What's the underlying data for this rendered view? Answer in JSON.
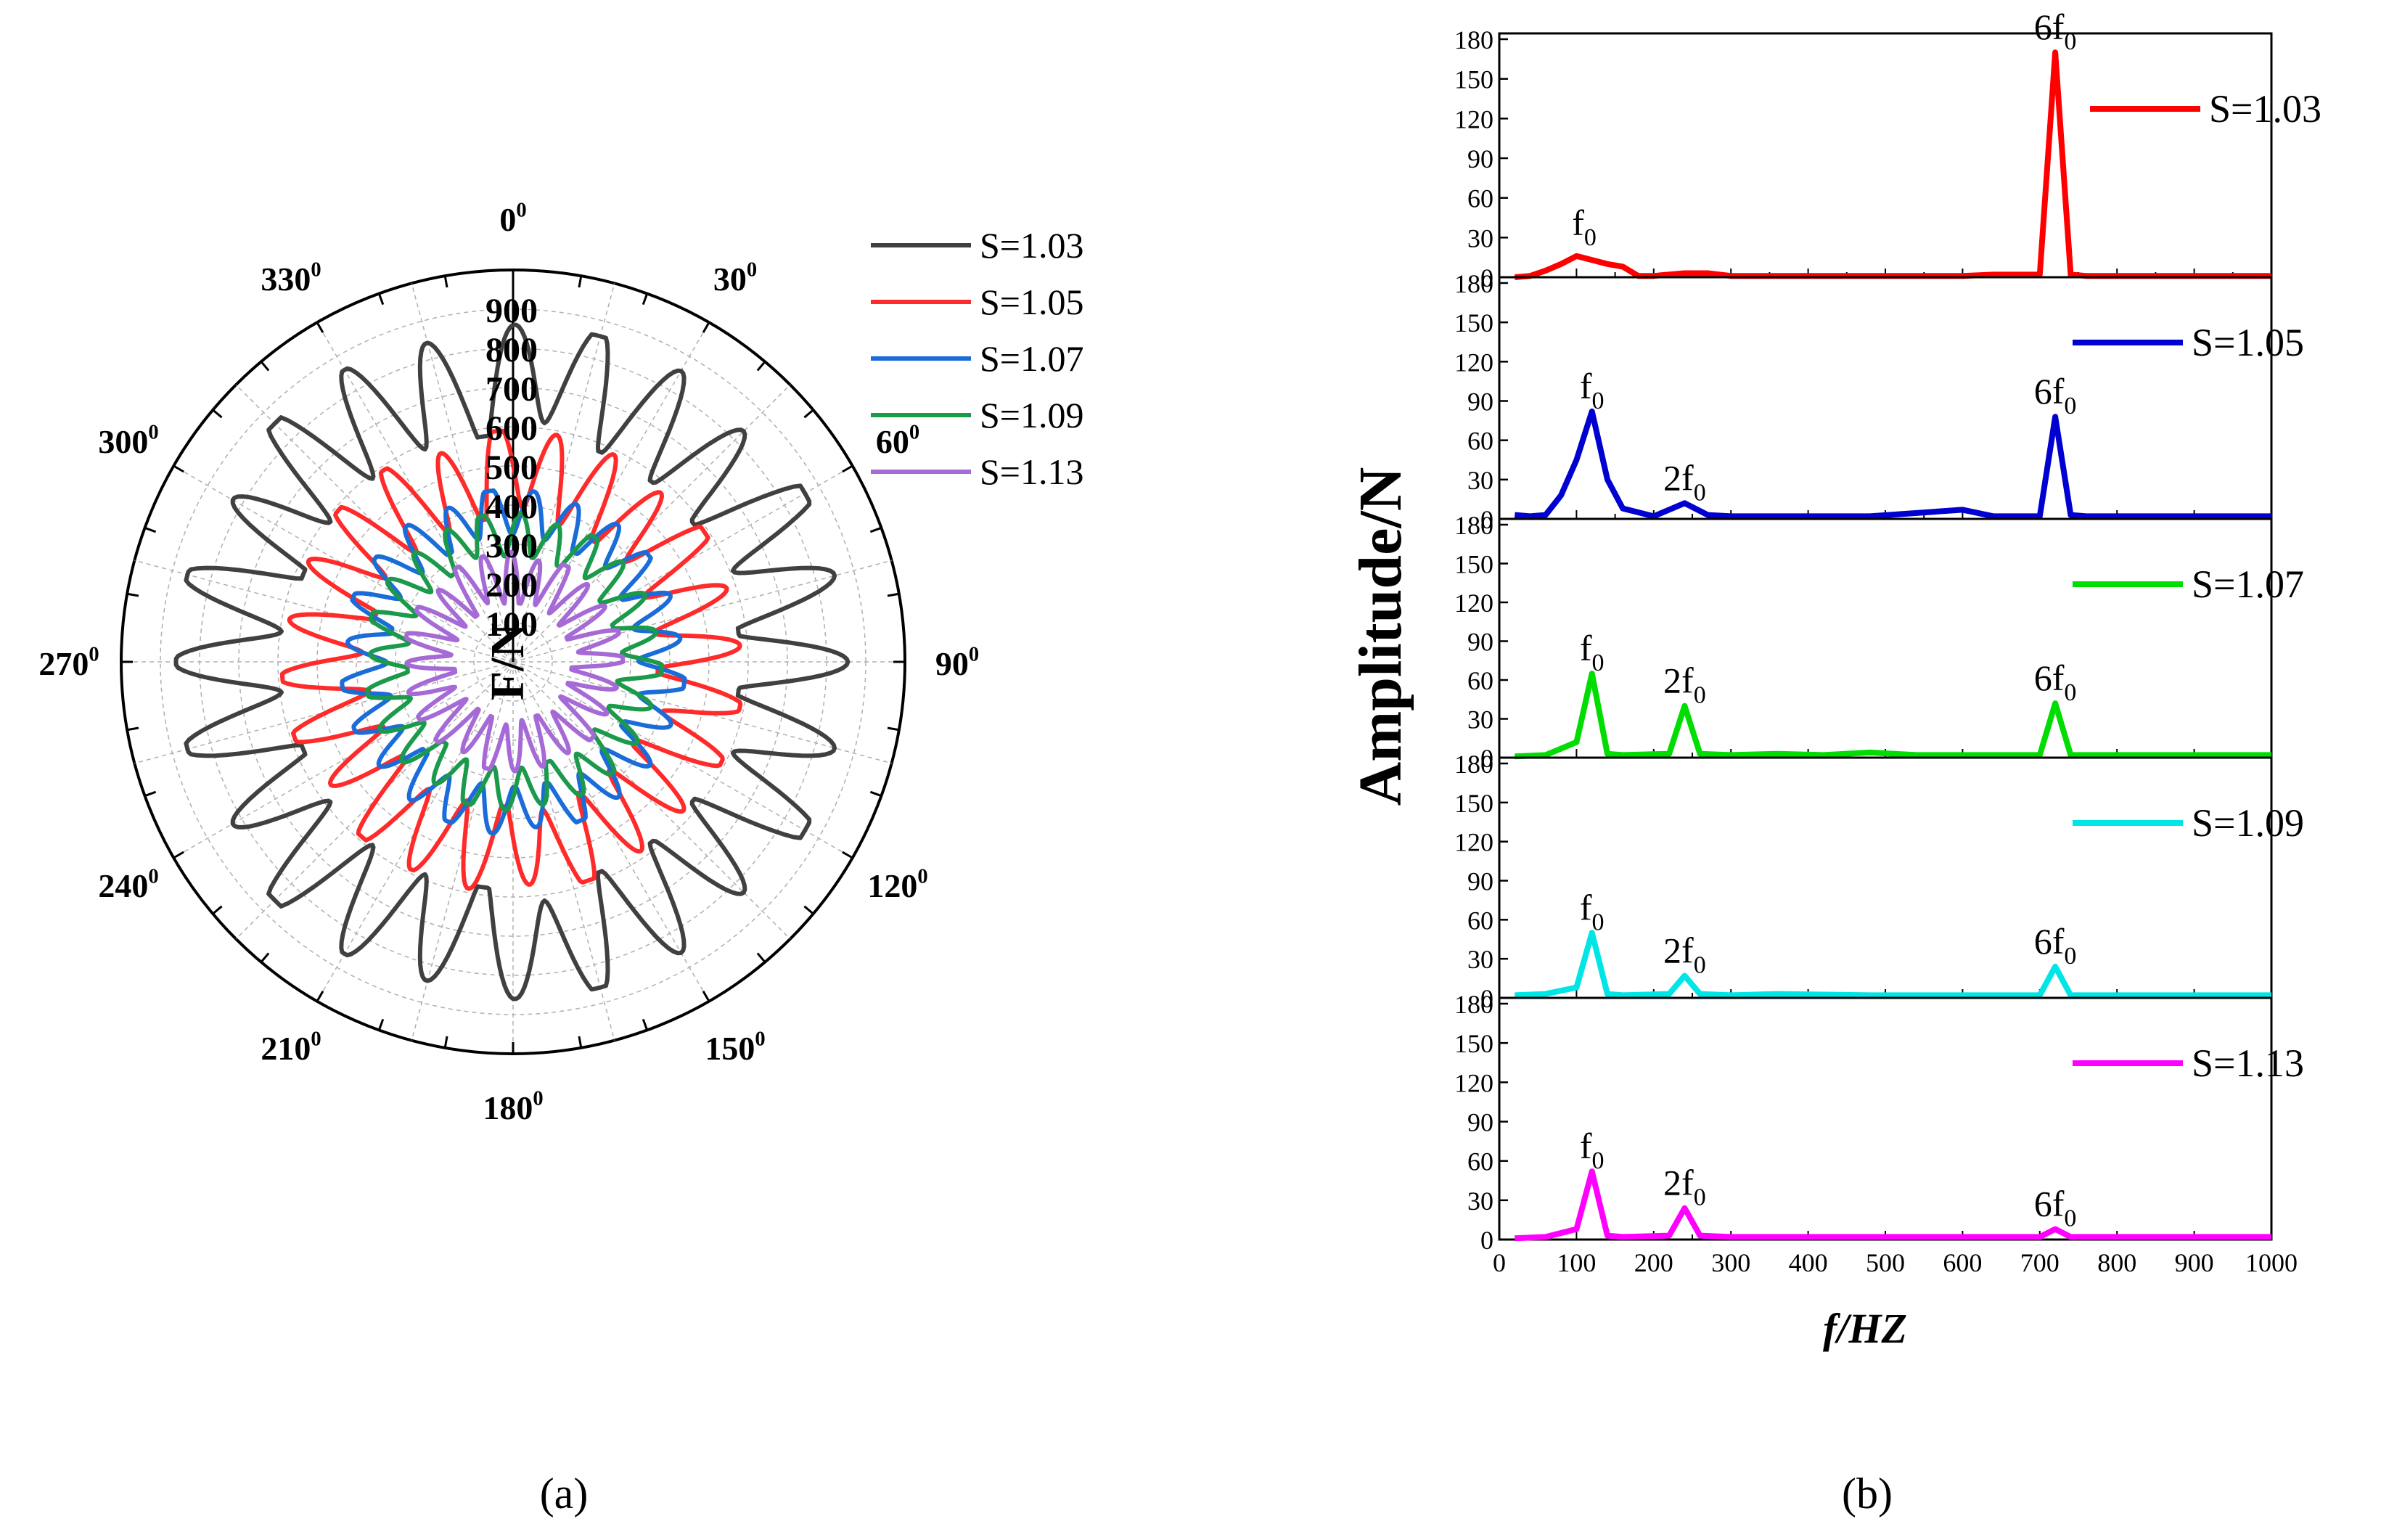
{
  "figure": {
    "caption_a": "(a)",
    "caption_b": "(b)"
  },
  "chart_data": [
    {
      "type": "polar-line",
      "panel": "a",
      "radial_label": "F/N",
      "radial_ticks": [
        "100",
        "200",
        "300",
        "400",
        "500",
        "600",
        "700",
        "800",
        "900"
      ],
      "rlim": [
        0,
        1000
      ],
      "angle_ticks": [
        {
          "deg": 0,
          "label": "0"
        },
        {
          "deg": 30,
          "label": "30"
        },
        {
          "deg": 60,
          "label": "60"
        },
        {
          "deg": 90,
          "label": "90"
        },
        {
          "deg": 120,
          "label": "120"
        },
        {
          "deg": 150,
          "label": "150"
        },
        {
          "deg": 180,
          "label": "180"
        },
        {
          "deg": 210,
          "label": "210"
        },
        {
          "deg": 240,
          "label": "240"
        },
        {
          "deg": 270,
          "label": "270"
        },
        {
          "deg": 300,
          "label": "300"
        },
        {
          "deg": 330,
          "label": "330"
        }
      ],
      "angle_superscript": "0",
      "legend_position": "top-right",
      "series": [
        {
          "name": "S=1.03",
          "color": "#404040",
          "lobes": 24,
          "r_min": 580,
          "r_max": 860
        },
        {
          "name": "S=1.05",
          "color": "#ff2a2a",
          "lobes": 24,
          "r_min": 370,
          "r_max": 590
        },
        {
          "name": "S=1.07",
          "color": "#1a6cd8",
          "lobes": 24,
          "r_min": 320,
          "r_max": 440
        },
        {
          "name": "S=1.09",
          "color": "#1a9a4a",
          "lobes": 24,
          "r_min": 270,
          "r_max": 380
        },
        {
          "name": "S=1.13",
          "color": "#a66ad6",
          "lobes": 24,
          "r_min": 150,
          "r_max": 280
        }
      ]
    },
    {
      "type": "line",
      "panel": "b",
      "ylabel": "Amplitude/N",
      "xlabel": "f/HZ",
      "xlim": [
        0,
        1000
      ],
      "ylim": [
        0,
        180
      ],
      "xticks": [
        "0",
        "100",
        "200",
        "300",
        "400",
        "500",
        "600",
        "700",
        "800",
        "900",
        "1000"
      ],
      "yticks": [
        "0",
        "30",
        "60",
        "90",
        "120",
        "150",
        "180"
      ],
      "series": [
        {
          "name": "S=1.03",
          "color": "#ff0000",
          "x": [
            20,
            40,
            60,
            80,
            100,
            120,
            140,
            160,
            180,
            200,
            240,
            270,
            300,
            360,
            480,
            600,
            640,
            700,
            720,
            740,
            760,
            1000
          ],
          "y": [
            0,
            1,
            5,
            10,
            16,
            13,
            10,
            8,
            1,
            1,
            3,
            3,
            1,
            1,
            1,
            1,
            2,
            2,
            170,
            2,
            1,
            1
          ],
          "annotations": [
            {
              "text": "f",
              "sub": "0",
              "x": 110,
              "y": 22
            },
            {
              "text": "6f",
              "sub": "0",
              "x": 720,
              "y": 170
            }
          ]
        },
        {
          "name": "S=1.05",
          "color": "#0000d0",
          "x": [
            20,
            40,
            60,
            80,
            100,
            120,
            140,
            160,
            200,
            240,
            270,
            300,
            360,
            480,
            600,
            640,
            700,
            720,
            740,
            760,
            1000
          ],
          "y": [
            3,
            2,
            3,
            18,
            45,
            82,
            30,
            8,
            2,
            12,
            3,
            2,
            2,
            2,
            7,
            2,
            2,
            78,
            3,
            2,
            2
          ],
          "annotations": [
            {
              "text": "f",
              "sub": "0",
              "x": 120,
              "y": 82
            },
            {
              "text": "2f",
              "sub": "0",
              "x": 240,
              "y": 12
            },
            {
              "text": "6f",
              "sub": "0",
              "x": 720,
              "y": 78
            }
          ]
        },
        {
          "name": "S=1.07",
          "color": "#00dd00",
          "x": [
            20,
            60,
            100,
            120,
            140,
            160,
            220,
            240,
            260,
            300,
            360,
            420,
            480,
            540,
            600,
            700,
            720,
            740,
            800,
            1000
          ],
          "y": [
            1,
            2,
            12,
            65,
            3,
            2,
            3,
            40,
            3,
            2,
            3,
            2,
            4,
            2,
            2,
            2,
            42,
            2,
            2,
            2
          ],
          "annotations": [
            {
              "text": "f",
              "sub": "0",
              "x": 120,
              "y": 65
            },
            {
              "text": "2f",
              "sub": "0",
              "x": 240,
              "y": 40
            },
            {
              "text": "6f",
              "sub": "0",
              "x": 720,
              "y": 42
            }
          ]
        },
        {
          "name": "S=1.09",
          "color": "#00e5e5",
          "x": [
            20,
            60,
            100,
            120,
            140,
            160,
            220,
            240,
            260,
            300,
            360,
            480,
            600,
            700,
            720,
            740,
            800,
            1000
          ],
          "y": [
            2,
            3,
            8,
            50,
            3,
            2,
            3,
            17,
            3,
            2,
            3,
            2,
            2,
            2,
            24,
            2,
            2,
            2
          ],
          "annotations": [
            {
              "text": "f",
              "sub": "0",
              "x": 120,
              "y": 50
            },
            {
              "text": "2f",
              "sub": "0",
              "x": 240,
              "y": 17
            },
            {
              "text": "6f",
              "sub": "0",
              "x": 720,
              "y": 24
            }
          ]
        },
        {
          "name": "S=1.13",
          "color": "#ff00ff",
          "x": [
            20,
            60,
            100,
            120,
            140,
            160,
            220,
            240,
            260,
            300,
            360,
            480,
            600,
            700,
            720,
            740,
            800,
            1000
          ],
          "y": [
            1,
            2,
            8,
            52,
            3,
            2,
            3,
            24,
            3,
            2,
            2,
            2,
            2,
            2,
            8,
            2,
            2,
            2
          ],
          "annotations": [
            {
              "text": "f",
              "sub": "0",
              "x": 120,
              "y": 52
            },
            {
              "text": "2f",
              "sub": "0",
              "x": 240,
              "y": 24
            },
            {
              "text": "6f",
              "sub": "0",
              "x": 720,
              "y": 8
            }
          ]
        }
      ]
    }
  ]
}
